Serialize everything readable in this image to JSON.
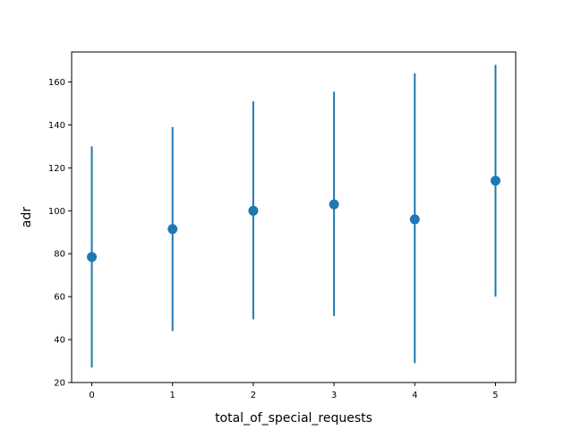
{
  "chart_data": {
    "type": "scatter",
    "xlabel": "total_of_special_requests",
    "ylabel": "adr",
    "x": [
      0,
      1,
      2,
      3,
      4,
      5
    ],
    "y": [
      78.5,
      91.5,
      100.0,
      103.0,
      96.0,
      114.0
    ],
    "error_low": [
      27,
      44,
      49.5,
      51,
      29,
      60
    ],
    "error_high": [
      130,
      139,
      151,
      155.5,
      164,
      168
    ],
    "xlim": [
      -0.25,
      5.25
    ],
    "ylim": [
      20,
      174
    ],
    "xticks": [
      "0",
      "1",
      "2",
      "3",
      "4",
      "5"
    ],
    "yticks": [
      "20",
      "40",
      "60",
      "80",
      "100",
      "120",
      "140",
      "160"
    ],
    "grid": false,
    "color": "#1f77b4"
  }
}
